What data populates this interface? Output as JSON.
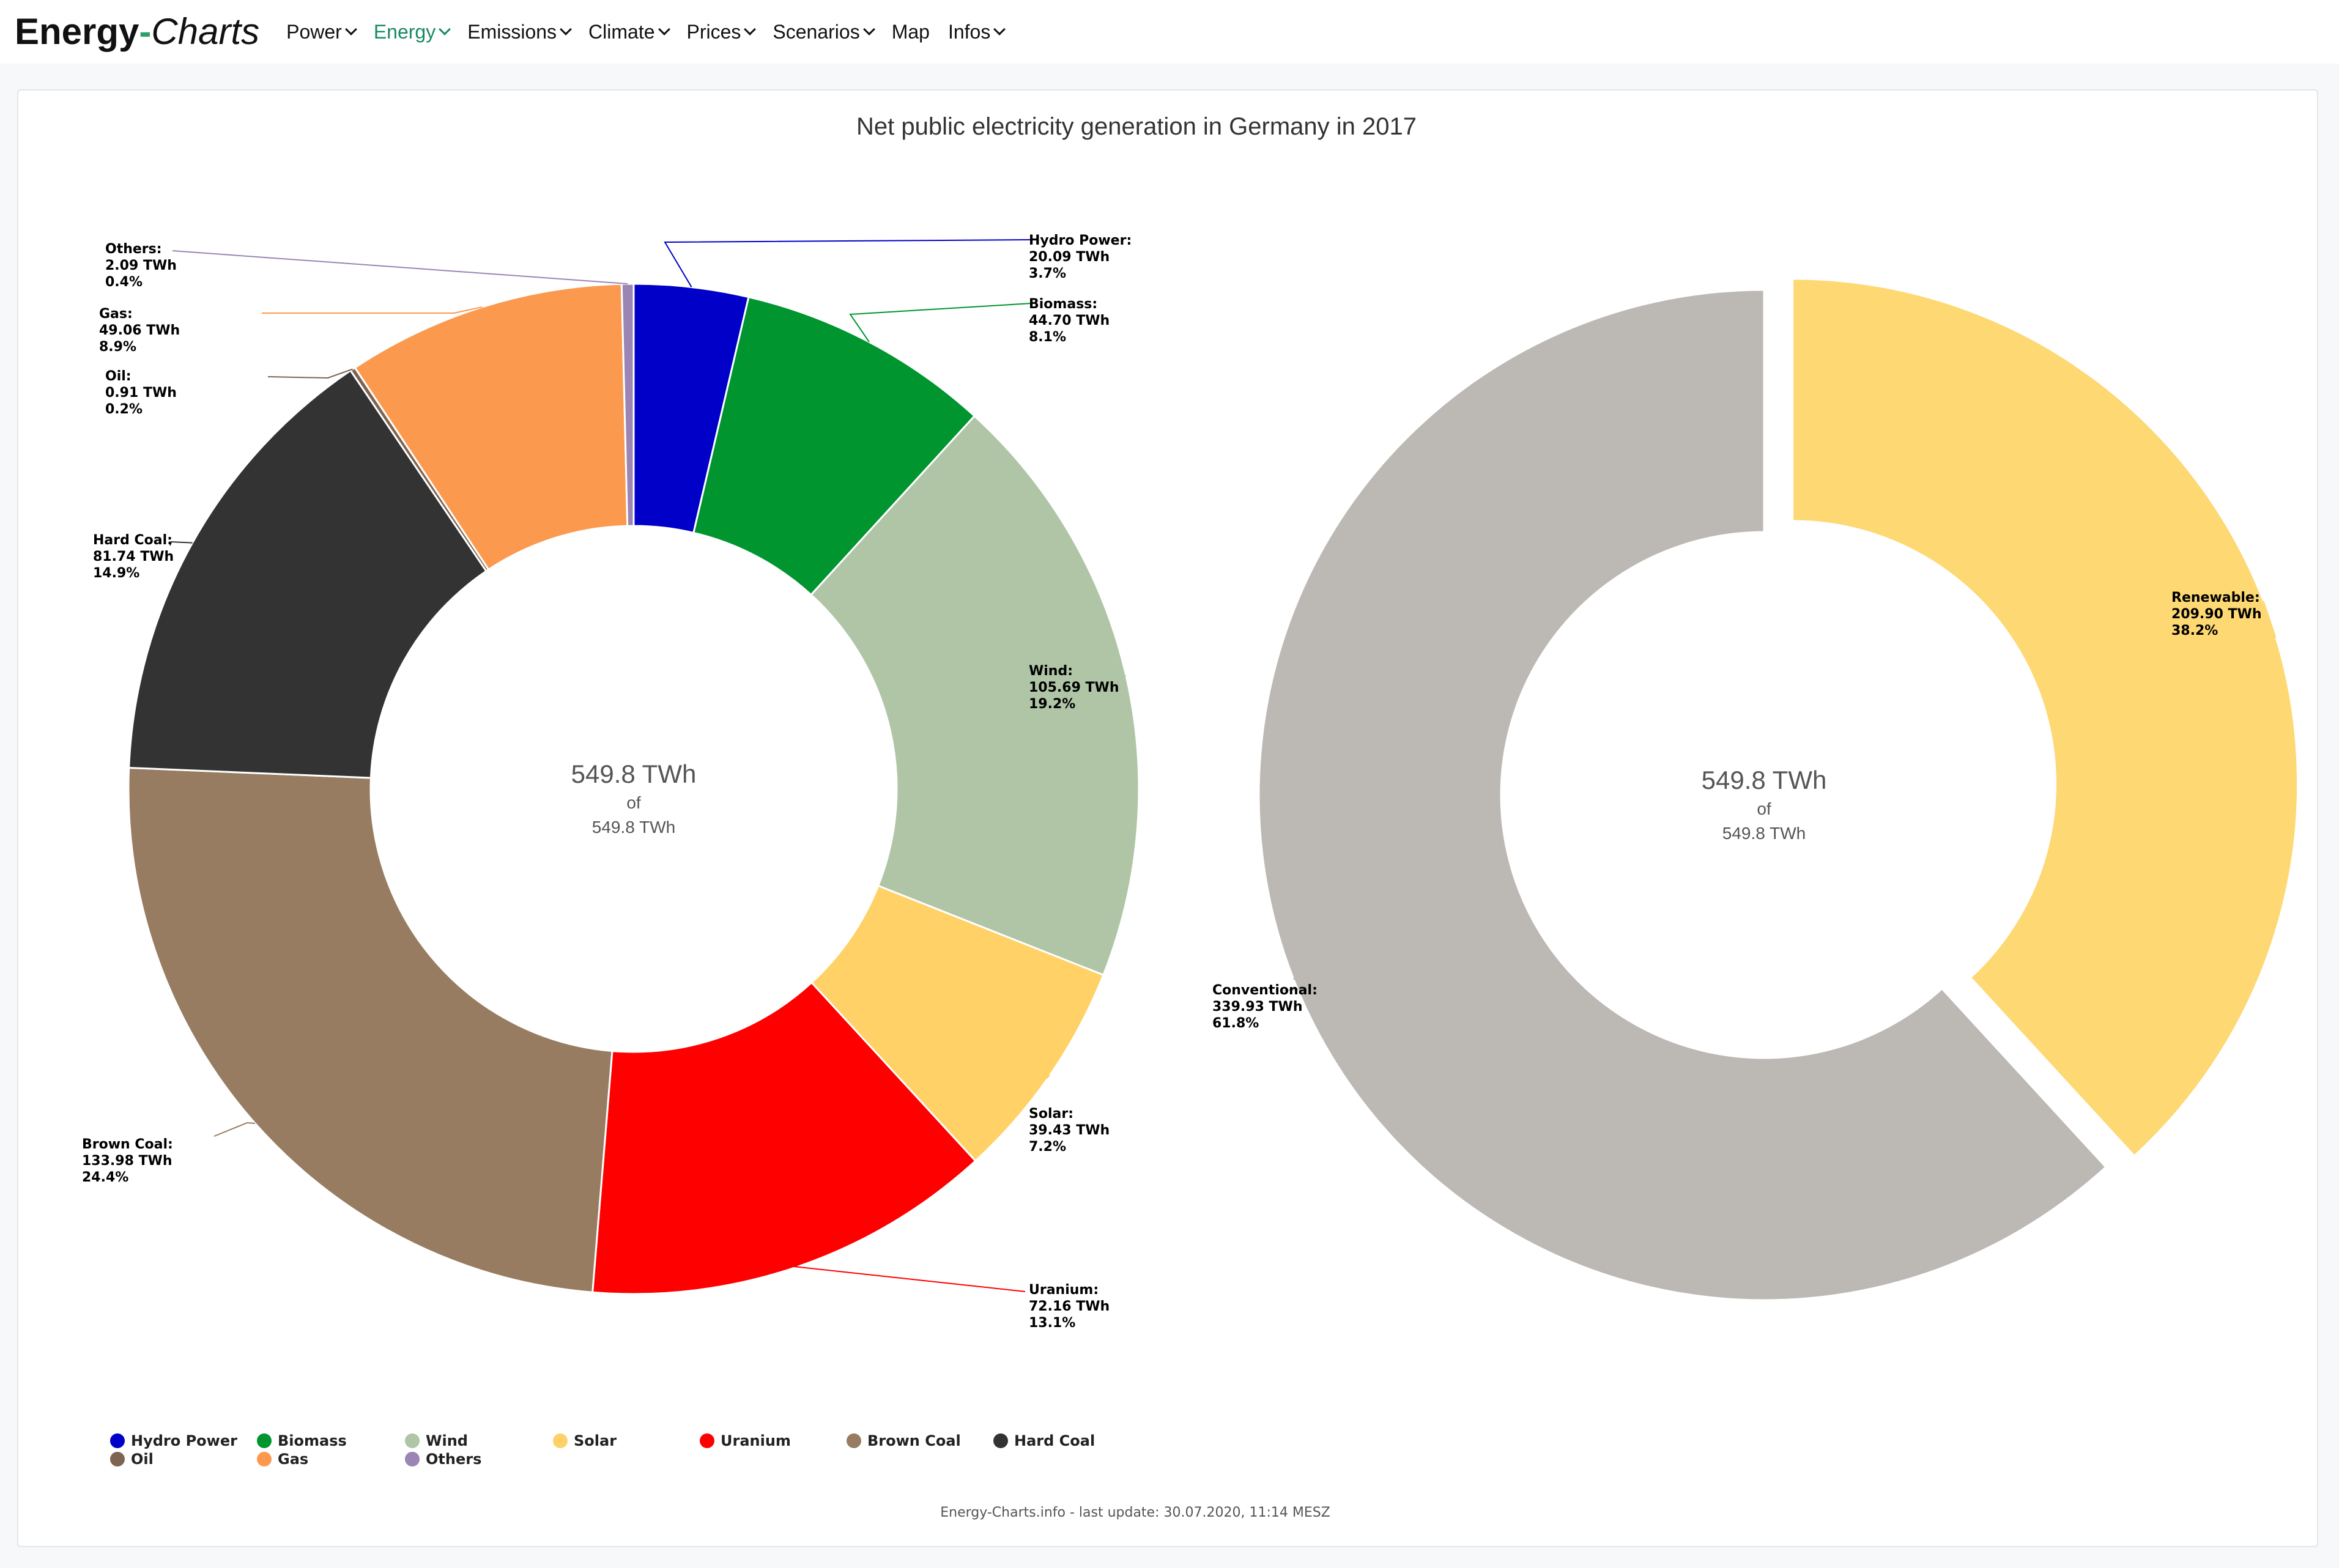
{
  "nav": {
    "logo_part1": "Energy",
    "logo_dash": "-",
    "logo_part2": "Charts",
    "items": [
      {
        "label": "Power",
        "active": false
      },
      {
        "label": "Energy",
        "active": true
      },
      {
        "label": "Emissions",
        "active": false
      },
      {
        "label": "Climate",
        "active": false
      },
      {
        "label": "Prices",
        "active": false
      },
      {
        "label": "Scenarios",
        "active": false
      },
      {
        "label": "Map",
        "active": false
      },
      {
        "label": "Infos",
        "active": false
      }
    ]
  },
  "chart_data": [
    {
      "type": "pie",
      "title": "Net public electricity generation in Germany in 2017",
      "unit": "TWh",
      "center": {
        "value": "549.8 TWh",
        "of": "of",
        "total": "549.8 TWh"
      },
      "slices": [
        {
          "name": "Hydro Power",
          "value": 20.09,
          "percent": "3.7%",
          "color": "#0000c8"
        },
        {
          "name": "Biomass",
          "value": 44.7,
          "percent": "8.1%",
          "color": "#00952f"
        },
        {
          "name": "Wind",
          "value": 105.69,
          "percent": "19.2%",
          "color": "#afc5a6"
        },
        {
          "name": "Solar",
          "value": 39.43,
          "percent": "7.2%",
          "color": "#ffd166"
        },
        {
          "name": "Uranium",
          "value": 72.16,
          "percent": "13.1%",
          "color": "#ff0000"
        },
        {
          "name": "Brown Coal",
          "value": 133.98,
          "percent": "24.4%",
          "color": "#977c61"
        },
        {
          "name": "Hard Coal",
          "value": 81.74,
          "percent": "14.9%",
          "color": "#333333"
        },
        {
          "name": "Oil",
          "value": 0.91,
          "percent": "0.2%",
          "color": "#7d6552"
        },
        {
          "name": "Gas",
          "value": 49.06,
          "percent": "8.9%",
          "color": "#fb9a4e"
        },
        {
          "name": "Others",
          "value": 2.09,
          "percent": "0.4%",
          "color": "#9a85b5"
        }
      ]
    },
    {
      "type": "pie",
      "title": "",
      "unit": "TWh",
      "center": {
        "value": "549.8 TWh",
        "of": "of",
        "total": "549.8 TWh"
      },
      "slices": [
        {
          "name": "Renewable",
          "value": 209.9,
          "percent": "38.2%",
          "color": "#fdd873"
        },
        {
          "name": "Conventional",
          "value": 339.93,
          "percent": "61.8%",
          "color": "#bcb8b4"
        }
      ]
    }
  ],
  "legend": [
    "Hydro Power",
    "Biomass",
    "Wind",
    "Solar",
    "Uranium",
    "Brown Coal",
    "Hard Coal",
    "Oil",
    "Gas",
    "Others"
  ],
  "credits": "Energy-Charts.info - last update: 30.07.2020, 11:14 MESZ"
}
